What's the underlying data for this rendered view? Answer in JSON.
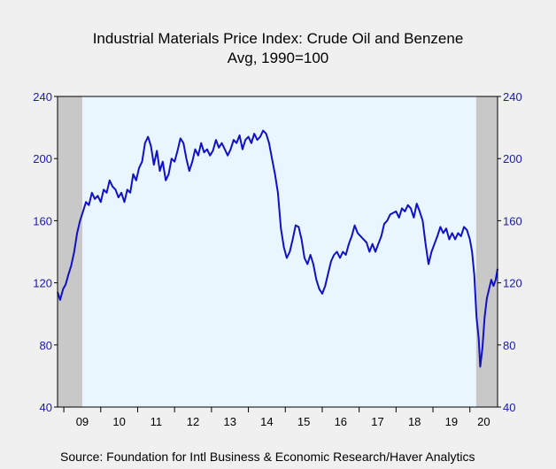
{
  "chart_data": {
    "type": "line",
    "title": "Industrial Materials Price Index: Crude Oil and Benzene",
    "subtitle": "Avg, 1990=100",
    "ylim": [
      40,
      240
    ],
    "yticks": [
      40,
      80,
      120,
      160,
      200,
      240
    ],
    "xlim": [
      2008.83,
      2020.75
    ],
    "xtick_labels": [
      "09",
      "10",
      "11",
      "12",
      "13",
      "14",
      "15",
      "16",
      "17",
      "18",
      "19",
      "20"
    ],
    "recessions": [
      [
        2008.83,
        2009.5
      ],
      [
        2020.17,
        2020.75
      ]
    ],
    "colors": {
      "line": "#1010c8",
      "axis_text": "#1818b8",
      "plot_bg": "#eaf6ff",
      "recession": "#c8c8c8"
    },
    "series": [
      {
        "values": [
          [
            2008.83,
            114
          ],
          [
            2008.9,
            109
          ],
          [
            2008.98,
            116
          ],
          [
            2009.05,
            119
          ],
          [
            2009.12,
            125
          ],
          [
            2009.2,
            131
          ],
          [
            2009.28,
            140
          ],
          [
            2009.36,
            152
          ],
          [
            2009.44,
            160
          ],
          [
            2009.52,
            166
          ],
          [
            2009.6,
            172
          ],
          [
            2009.68,
            170
          ],
          [
            2009.76,
            178
          ],
          [
            2009.84,
            174
          ],
          [
            2009.92,
            176
          ],
          [
            2010.0,
            172
          ],
          [
            2010.08,
            180
          ],
          [
            2010.16,
            178
          ],
          [
            2010.24,
            186
          ],
          [
            2010.32,
            182
          ],
          [
            2010.4,
            180
          ],
          [
            2010.48,
            175
          ],
          [
            2010.56,
            178
          ],
          [
            2010.64,
            172
          ],
          [
            2010.72,
            180
          ],
          [
            2010.8,
            178
          ],
          [
            2010.88,
            190
          ],
          [
            2010.96,
            186
          ],
          [
            2011.04,
            194
          ],
          [
            2011.12,
            198
          ],
          [
            2011.2,
            210
          ],
          [
            2011.28,
            214
          ],
          [
            2011.36,
            208
          ],
          [
            2011.44,
            196
          ],
          [
            2011.52,
            205
          ],
          [
            2011.6,
            192
          ],
          [
            2011.68,
            198
          ],
          [
            2011.76,
            186
          ],
          [
            2011.84,
            190
          ],
          [
            2011.92,
            200
          ],
          [
            2012.0,
            198
          ],
          [
            2012.08,
            205
          ],
          [
            2012.16,
            213
          ],
          [
            2012.24,
            210
          ],
          [
            2012.32,
            200
          ],
          [
            2012.4,
            192
          ],
          [
            2012.48,
            198
          ],
          [
            2012.56,
            206
          ],
          [
            2012.64,
            202
          ],
          [
            2012.72,
            210
          ],
          [
            2012.8,
            204
          ],
          [
            2012.88,
            206
          ],
          [
            2012.96,
            202
          ],
          [
            2013.04,
            205
          ],
          [
            2013.12,
            212
          ],
          [
            2013.2,
            207
          ],
          [
            2013.28,
            210
          ],
          [
            2013.36,
            206
          ],
          [
            2013.44,
            202
          ],
          [
            2013.52,
            206
          ],
          [
            2013.6,
            212
          ],
          [
            2013.68,
            210
          ],
          [
            2013.76,
            215
          ],
          [
            2013.84,
            206
          ],
          [
            2013.92,
            212
          ],
          [
            2014.0,
            214
          ],
          [
            2014.08,
            210
          ],
          [
            2014.16,
            216
          ],
          [
            2014.24,
            212
          ],
          [
            2014.32,
            214
          ],
          [
            2014.4,
            218
          ],
          [
            2014.48,
            216
          ],
          [
            2014.56,
            210
          ],
          [
            2014.64,
            200
          ],
          [
            2014.72,
            190
          ],
          [
            2014.8,
            178
          ],
          [
            2014.88,
            155
          ],
          [
            2014.96,
            143
          ],
          [
            2015.04,
            136
          ],
          [
            2015.12,
            140
          ],
          [
            2015.2,
            148
          ],
          [
            2015.28,
            157
          ],
          [
            2015.36,
            156
          ],
          [
            2015.44,
            148
          ],
          [
            2015.52,
            136
          ],
          [
            2015.6,
            132
          ],
          [
            2015.68,
            138
          ],
          [
            2015.76,
            132
          ],
          [
            2015.84,
            122
          ],
          [
            2015.92,
            116
          ],
          [
            2016.0,
            113
          ],
          [
            2016.08,
            118
          ],
          [
            2016.16,
            126
          ],
          [
            2016.24,
            134
          ],
          [
            2016.32,
            138
          ],
          [
            2016.4,
            140
          ],
          [
            2016.48,
            136
          ],
          [
            2016.56,
            140
          ],
          [
            2016.64,
            138
          ],
          [
            2016.72,
            145
          ],
          [
            2016.8,
            150
          ],
          [
            2016.88,
            157
          ],
          [
            2016.96,
            152
          ],
          [
            2017.04,
            150
          ],
          [
            2017.12,
            148
          ],
          [
            2017.2,
            146
          ],
          [
            2017.28,
            140
          ],
          [
            2017.36,
            145
          ],
          [
            2017.44,
            140
          ],
          [
            2017.52,
            145
          ],
          [
            2017.6,
            150
          ],
          [
            2017.68,
            158
          ],
          [
            2017.76,
            160
          ],
          [
            2017.84,
            164
          ],
          [
            2017.92,
            165
          ],
          [
            2018.0,
            166
          ],
          [
            2018.08,
            162
          ],
          [
            2018.16,
            168
          ],
          [
            2018.24,
            166
          ],
          [
            2018.32,
            170
          ],
          [
            2018.4,
            168
          ],
          [
            2018.48,
            162
          ],
          [
            2018.56,
            171
          ],
          [
            2018.64,
            166
          ],
          [
            2018.72,
            160
          ],
          [
            2018.8,
            145
          ],
          [
            2018.88,
            132
          ],
          [
            2018.96,
            140
          ],
          [
            2019.04,
            145
          ],
          [
            2019.12,
            150
          ],
          [
            2019.2,
            156
          ],
          [
            2019.28,
            152
          ],
          [
            2019.36,
            155
          ],
          [
            2019.44,
            148
          ],
          [
            2019.52,
            152
          ],
          [
            2019.6,
            148
          ],
          [
            2019.68,
            152
          ],
          [
            2019.76,
            150
          ],
          [
            2019.84,
            156
          ],
          [
            2019.92,
            154
          ],
          [
            2020.0,
            148
          ],
          [
            2020.06,
            140
          ],
          [
            2020.12,
            125
          ],
          [
            2020.18,
            98
          ],
          [
            2020.24,
            84
          ],
          [
            2020.28,
            66
          ],
          [
            2020.34,
            78
          ],
          [
            2020.4,
            98
          ],
          [
            2020.46,
            110
          ],
          [
            2020.52,
            116
          ],
          [
            2020.58,
            122
          ],
          [
            2020.64,
            118
          ],
          [
            2020.7,
            122
          ],
          [
            2020.75,
            129
          ]
        ]
      }
    ]
  },
  "source": "Source:  Foundation for Intl Business & Economic Research/Haver Analytics"
}
